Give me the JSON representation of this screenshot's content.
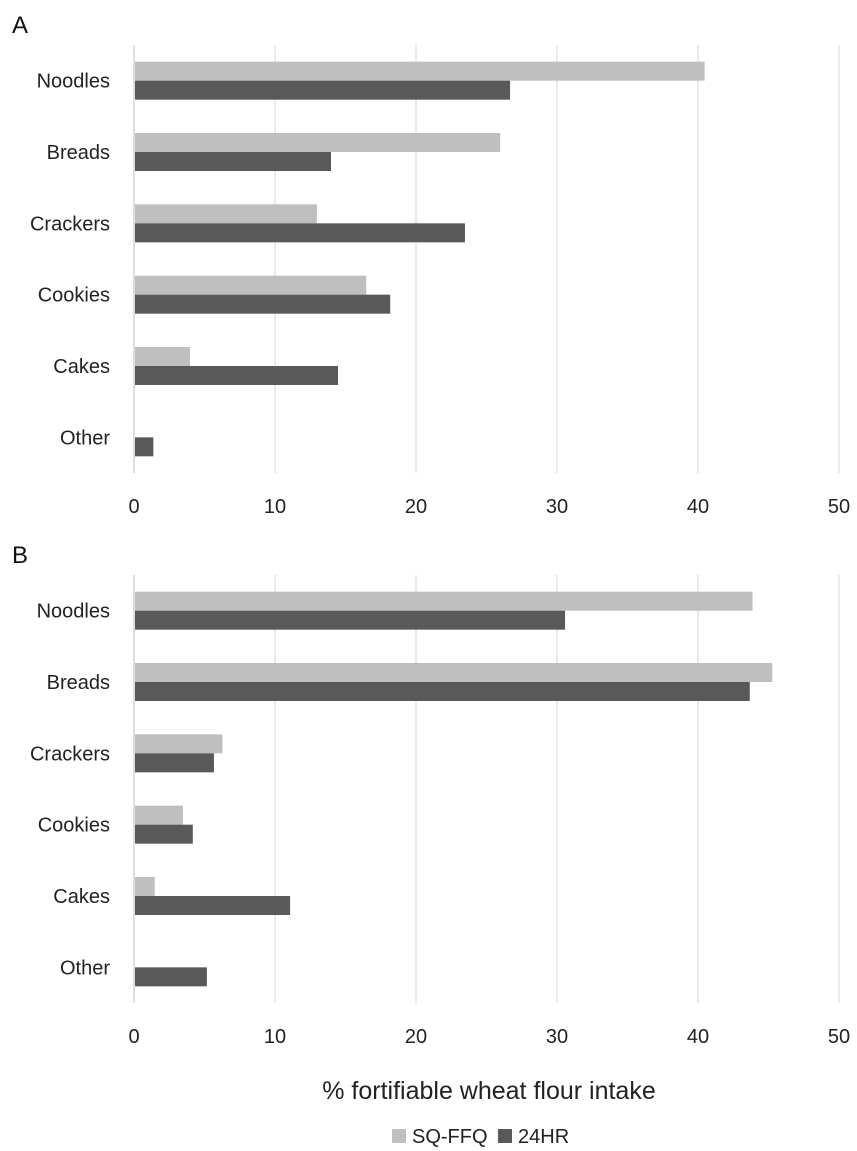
{
  "chart_data": {
    "type": "bar",
    "orientation": "horizontal",
    "xlabel": "% fortifiable wheat flour intake",
    "xlim": [
      0,
      50
    ],
    "xticks": [
      "0",
      "10",
      "20",
      "30",
      "40",
      "50"
    ],
    "grid": true,
    "legend": {
      "placement": "bottom",
      "entries": [
        {
          "name": "SQ-FFQ",
          "color": "#bfbfbf"
        },
        {
          "name": "24HR",
          "color": "#595959"
        }
      ]
    },
    "panels": [
      {
        "label": "A",
        "categories": [
          "Noodles",
          "Breads",
          "Crackers",
          "Cookies",
          "Cakes",
          "Other"
        ],
        "series": [
          {
            "name": "SQ-FFQ",
            "color": "#bfbfbf",
            "values": [
              40.4,
              25.9,
              12.9,
              16.4,
              3.9,
              0
            ]
          },
          {
            "name": "24HR",
            "color": "#595959",
            "values": [
              26.6,
              13.9,
              23.4,
              18.1,
              14.4,
              1.3
            ]
          }
        ]
      },
      {
        "label": "B",
        "categories": [
          "Noodles",
          "Breads",
          "Crackers",
          "Cookies",
          "Cakes",
          "Other"
        ],
        "series": [
          {
            "name": "SQ-FFQ",
            "color": "#bfbfbf",
            "values": [
              43.8,
              45.2,
              6.2,
              3.4,
              1.4,
              0
            ]
          },
          {
            "name": "24HR",
            "color": "#595959",
            "values": [
              30.5,
              43.6,
              5.6,
              4.1,
              11.0,
              5.1
            ]
          }
        ]
      }
    ]
  }
}
